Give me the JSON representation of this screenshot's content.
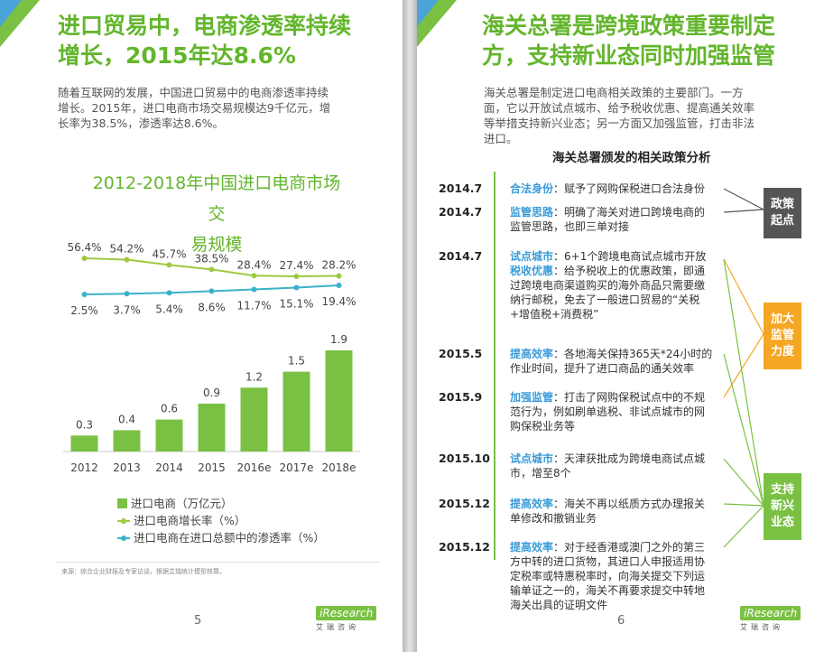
{
  "left": {
    "title_lines": [
      "进口贸易中，电商渗透率持续",
      "增长，2015年达8.6%"
    ],
    "intro_lines": [
      "随着互联网的发展，中国进口贸易中的电商渗透率持续",
      "增长。2015年，进口电商市场交易规模达9千亿元，增",
      "长率为38.5%，渗透率达8.6%。"
    ],
    "chart_title_lines": [
      "2012-2018年中国进口电商市场交",
      "易规模"
    ],
    "legend": [
      "进口电商（万亿元）",
      "进口电商增长率（%）",
      "进口电商在进口总额中的渗透率（%）"
    ],
    "source": "来源：综合企业财报及专家访谈，根据艾瑞统计模型核算。",
    "page_number": "5"
  },
  "chart_data": {
    "type": "bar",
    "categories": [
      "2012",
      "2013",
      "2014",
      "2015",
      "2016e",
      "2017e",
      "2018e"
    ],
    "series": [
      {
        "name": "进口电商（万亿元）",
        "type": "bar",
        "values": [
          0.3,
          0.4,
          0.6,
          0.9,
          1.2,
          1.5,
          1.9
        ],
        "labels": [
          "0.3",
          "0.4",
          "0.6",
          "0.9",
          "1.2",
          "1.5",
          "1.9"
        ]
      },
      {
        "name": "进口电商增长率（%）",
        "type": "line",
        "values": [
          56.4,
          54.2,
          45.7,
          38.5,
          28.4,
          27.4,
          28.2
        ],
        "labels": [
          "56.4%",
          "54.2%",
          "45.7%",
          "38.5%",
          "28.4%",
          "27.4%",
          "28.2%"
        ]
      },
      {
        "name": "进口电商在进口总额中的渗透率（%）",
        "type": "line",
        "values": [
          2.5,
          3.7,
          5.4,
          8.6,
          11.7,
          15.1,
          19.4
        ],
        "labels": [
          "2.5%",
          "3.7%",
          "5.4%",
          "8.6%",
          "11.7%",
          "15.1%",
          "19.4%"
        ]
      }
    ],
    "colors": {
      "bar": "#7ac143",
      "growth": "#9dc93f",
      "penetration": "#3ab2c9"
    },
    "legend_position": "bottom"
  },
  "right": {
    "title_lines": [
      "海关总署是跨境政策重要制定",
      "方，支持新业态同时加强监管"
    ],
    "intro_lines": [
      "海关总署是制定进口电商相关政策的主要部门。一方",
      "面，它以开放试点城市、给予税收优惠、提高通关效率",
      "等举措支持新兴业态；另一方面又加强监管，打击非法",
      "进口。"
    ],
    "subtitle": "海关总署颁发的相关政策分析",
    "events": [
      {
        "date": "2014.7",
        "items": [
          {
            "tag": "合法身份",
            "text": "：赋予了网购保税进口合法身份"
          }
        ],
        "rest": []
      },
      {
        "date": "2014.7",
        "items": [
          {
            "tag": "监管思路",
            "text": "：明确了海关对进口跨境电商的"
          }
        ],
        "rest": [
          "监管思路，也即三单对接"
        ]
      },
      {
        "date": "2014.7",
        "items": [
          {
            "tag": "试点城市",
            "text": "：6+1个跨境电商试点城市开放"
          },
          {
            "tag": "税收优惠",
            "text": "：给予税收上的优惠政策，即通"
          }
        ],
        "rest": [
          "过跨境电商渠道购买的海外商品只需要缴",
          "纳行邮税，免去了一般进口贸易的“关税",
          "+增值税+消费税”"
        ]
      },
      {
        "date": "2015.5",
        "items": [
          {
            "tag": "提高效率",
            "text": "：各地海关保持365天*24小时的"
          }
        ],
        "rest": [
          "作业时间，提升了进口商品的通关效率"
        ]
      },
      {
        "date": "2015.9",
        "items": [
          {
            "tag": "加强监管",
            "text": "：打击了网购保税试点中的不规"
          }
        ],
        "rest": [
          "范行为，例如刷单逃税、非试点城市的网",
          "购保税业务等"
        ]
      },
      {
        "date": "2015.10",
        "items": [
          {
            "tag": "试点城市",
            "text": "：天津获批成为跨境电商试点城"
          }
        ],
        "rest": [
          "市，增至8个"
        ]
      },
      {
        "date": "2015.12",
        "items": [
          {
            "tag": "提高效率",
            "text": "：海关不再以纸质方式办理报关"
          }
        ],
        "rest": [
          "单修改和撤销业务"
        ]
      },
      {
        "date": "2015.12",
        "items": [
          {
            "tag": "提高效率",
            "text": "：对于经香港或澳门之外的第三"
          }
        ],
        "rest": [
          "方中转的进口货物，其进口人申报适用协",
          "定税率或特惠税率时，向海关提交下列运",
          "输单证之一的，海关不再要求提交中转地",
          "海关出具的证明文件"
        ]
      }
    ],
    "badges": [
      {
        "lines": [
          "政策",
          "起点"
        ],
        "color": "#555555"
      },
      {
        "lines": [
          "加大",
          "监管",
          "力度"
        ],
        "color": "#f5a623"
      },
      {
        "lines": [
          "支持",
          "新兴",
          "业态"
        ],
        "color": "#7ac143"
      }
    ],
    "page_number": "6"
  },
  "logo": {
    "brand": "iResearch",
    "sub": "艾瑞咨询"
  }
}
